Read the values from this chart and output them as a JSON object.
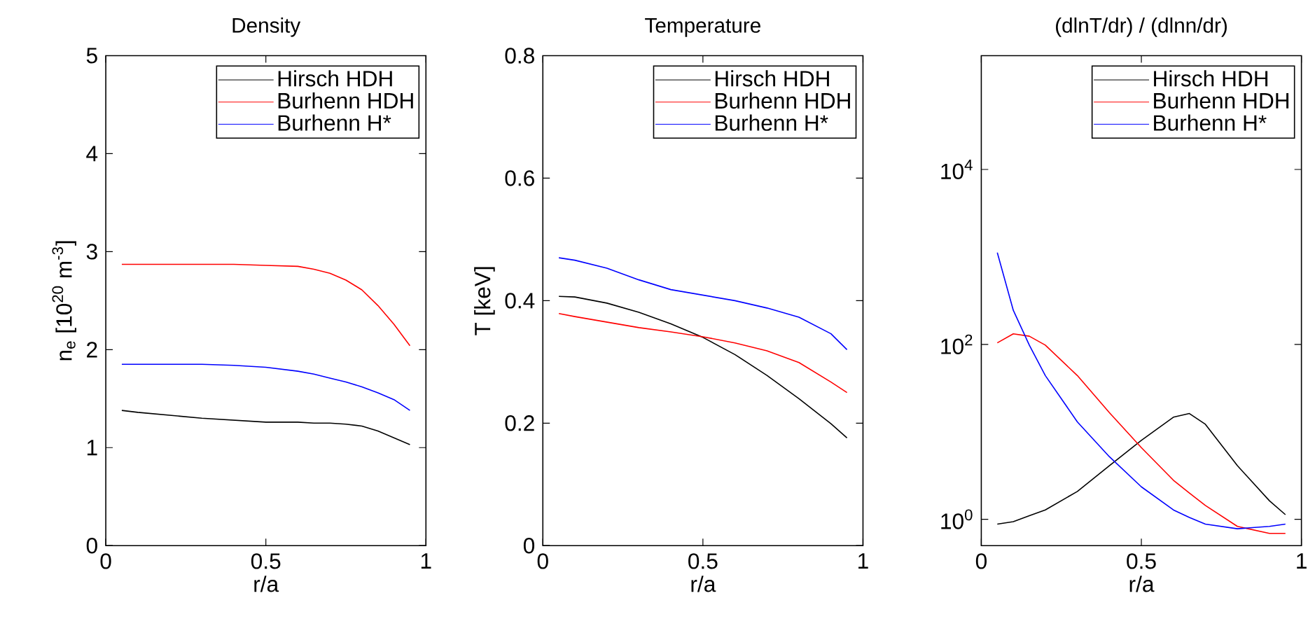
{
  "chart_data": [
    {
      "type": "line",
      "title": "Density",
      "xlabel": "r/a",
      "ylabel": "n$_{e}$ [10$^{20}$ m$^{-3}$]",
      "xlim": [
        0,
        1
      ],
      "ylim": [
        0,
        5
      ],
      "xticks": [
        0,
        0.5,
        1
      ],
      "yticks": [
        0,
        1,
        2,
        3,
        4,
        5
      ],
      "legend": "top",
      "grid": false,
      "x": [
        0.05,
        0.1,
        0.2,
        0.3,
        0.4,
        0.5,
        0.6,
        0.65,
        0.7,
        0.75,
        0.8,
        0.85,
        0.9,
        0.95
      ],
      "series": [
        {
          "name": "Hirsch HDH",
          "color": "#000000",
          "values": [
            1.38,
            1.36,
            1.33,
            1.3,
            1.28,
            1.26,
            1.26,
            1.25,
            1.25,
            1.24,
            1.22,
            1.17,
            1.1,
            1.03
          ]
        },
        {
          "name": "Burhenn HDH",
          "color": "#ff0000",
          "values": [
            2.87,
            2.87,
            2.87,
            2.87,
            2.87,
            2.86,
            2.85,
            2.82,
            2.78,
            2.71,
            2.61,
            2.45,
            2.26,
            2.04
          ]
        },
        {
          "name": "Burhenn H*",
          "color": "#0000ff",
          "values": [
            1.85,
            1.85,
            1.85,
            1.85,
            1.84,
            1.82,
            1.78,
            1.75,
            1.71,
            1.67,
            1.62,
            1.56,
            1.49,
            1.38
          ]
        }
      ]
    },
    {
      "type": "line",
      "title": "Temperature",
      "xlabel": "r/a",
      "ylabel": "T [keV]",
      "xlim": [
        0,
        1
      ],
      "ylim": [
        0,
        0.8
      ],
      "xticks": [
        0,
        0.5,
        1
      ],
      "yticks": [
        0,
        0.2,
        0.4,
        0.6,
        0.8
      ],
      "legend": "top",
      "grid": false,
      "x": [
        0.05,
        0.1,
        0.2,
        0.3,
        0.4,
        0.5,
        0.6,
        0.7,
        0.8,
        0.9,
        0.95
      ],
      "series": [
        {
          "name": "Hirsch HDH",
          "color": "#000000",
          "values": [
            0.407,
            0.406,
            0.396,
            0.381,
            0.362,
            0.34,
            0.312,
            0.278,
            0.24,
            0.199,
            0.176
          ]
        },
        {
          "name": "Burhenn HDH",
          "color": "#ff0000",
          "values": [
            0.379,
            0.374,
            0.365,
            0.356,
            0.349,
            0.341,
            0.331,
            0.318,
            0.299,
            0.267,
            0.25
          ]
        },
        {
          "name": "Burhenn H*",
          "color": "#0000ff",
          "values": [
            0.47,
            0.466,
            0.453,
            0.434,
            0.418,
            0.409,
            0.4,
            0.388,
            0.373,
            0.346,
            0.32
          ]
        }
      ]
    },
    {
      "type": "line",
      "title": "(dlnT/dr) / (dlnn/dr)",
      "xlabel": "r/a",
      "log": "y",
      "xlim": [
        0,
        1
      ],
      "ylim": [
        0.5,
        200000
      ],
      "xticks": [
        0,
        0.5,
        1
      ],
      "yticks": [
        {
          "value": 1,
          "label": "10$^{0}$"
        },
        {
          "value": 100,
          "label": "10$^{2}$"
        },
        {
          "value": 10000,
          "label": "10$^{4}$"
        }
      ],
      "legend": "top",
      "grid": false,
      "x": [
        0.05,
        0.1,
        0.15,
        0.2,
        0.3,
        0.4,
        0.5,
        0.6,
        0.65,
        0.7,
        0.8,
        0.9,
        0.95
      ],
      "series": [
        {
          "name": "Hirsch HDH",
          "color": "#000000",
          "values": [
            0.88,
            0.94,
            1.1,
            1.28,
            2.08,
            4.1,
            8.0,
            14.7,
            16.2,
            12.2,
            4.1,
            1.63,
            1.13
          ]
        },
        {
          "name": "Burhenn HDH",
          "color": "#ff0000",
          "values": [
            104,
            132,
            124,
            98,
            44,
            16.6,
            6.6,
            2.8,
            2.0,
            1.44,
            0.83,
            0.69,
            0.69
          ]
        },
        {
          "name": "Burhenn H*",
          "color": "#0000ff",
          "values": [
            1120,
            245,
            98,
            44,
            13,
            5.2,
            2.35,
            1.28,
            1.05,
            0.88,
            0.78,
            0.83,
            0.88
          ]
        }
      ]
    }
  ]
}
